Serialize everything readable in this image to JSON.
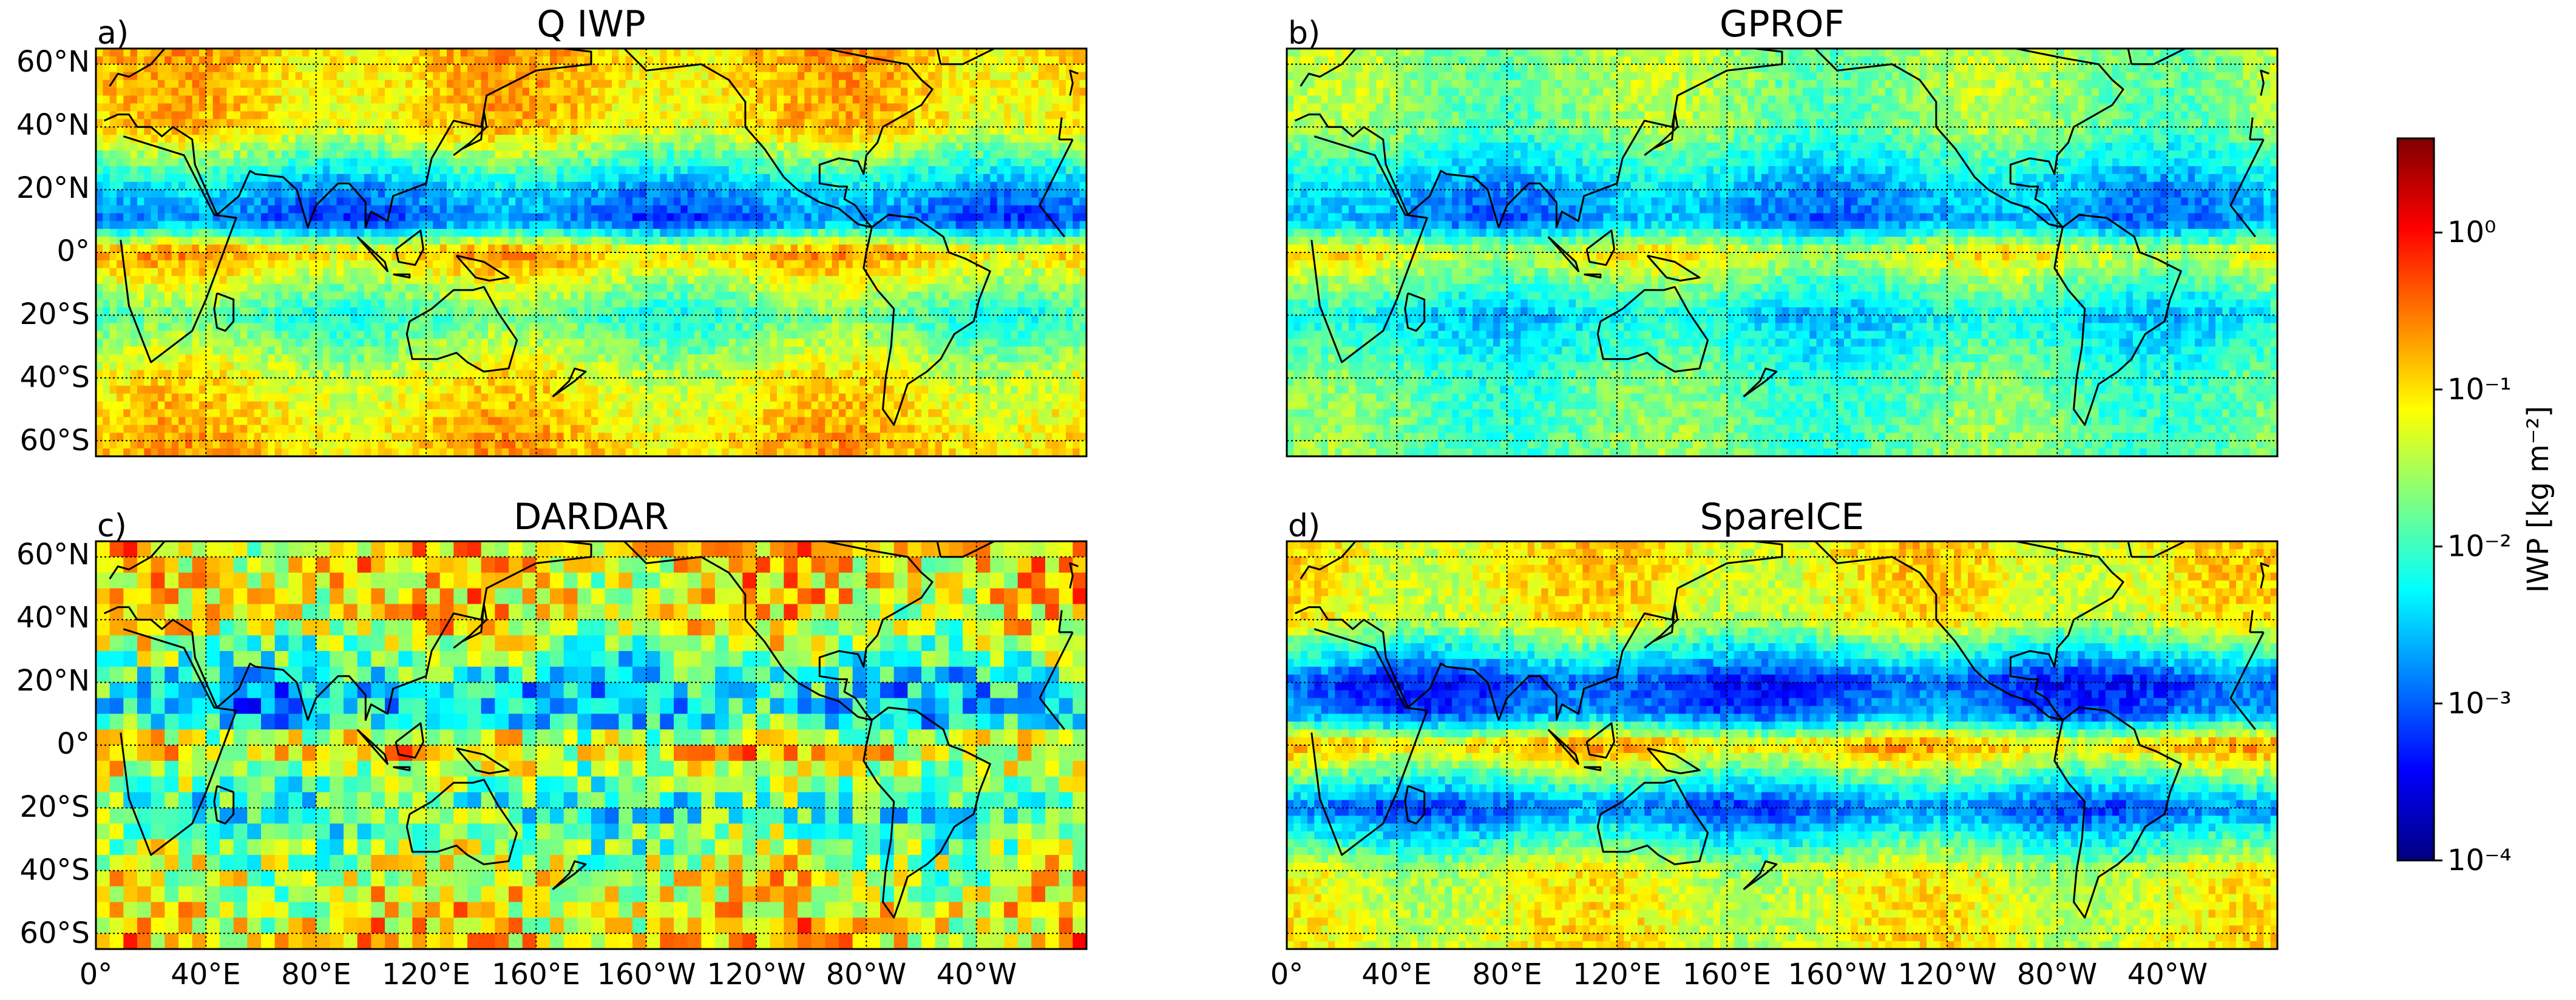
{
  "chart_data": [
    {
      "type": "heatmap",
      "panel_label": "a)",
      "title": "Q IWP",
      "x_tick_labels": [],
      "y_tick_labels": [
        "60°N",
        "40°N",
        "20°N",
        "0°",
        "20°S",
        "40°S",
        "60°S"
      ],
      "xlim": [
        0,
        360
      ],
      "ylim": [
        -65,
        65
      ],
      "lat_band_log10_iwp": [
        {
          "lat": 60,
          "value": -0.9
        },
        {
          "lat": 40,
          "value": -1.0
        },
        {
          "lat": 20,
          "value": -2.6
        },
        {
          "lat": 10,
          "value": -3.0
        },
        {
          "lat": 0,
          "value": -0.8
        },
        {
          "lat": -20,
          "value": -2.0
        },
        {
          "lat": -40,
          "value": -1.2
        },
        {
          "lat": -60,
          "value": -0.9
        }
      ],
      "resolution": "fine"
    },
    {
      "type": "heatmap",
      "panel_label": "b)",
      "title": "GPROF",
      "x_tick_labels": [],
      "y_tick_labels": [],
      "xlim": [
        0,
        360
      ],
      "ylim": [
        -65,
        65
      ],
      "lat_band_log10_iwp": [
        {
          "lat": 60,
          "value": -1.6
        },
        {
          "lat": 40,
          "value": -1.7
        },
        {
          "lat": 20,
          "value": -2.6
        },
        {
          "lat": 10,
          "value": -2.8
        },
        {
          "lat": 0,
          "value": -1.2
        },
        {
          "lat": -20,
          "value": -2.4
        },
        {
          "lat": -40,
          "value": -1.9
        },
        {
          "lat": -60,
          "value": -1.8
        }
      ],
      "resolution": "fine"
    },
    {
      "type": "heatmap",
      "panel_label": "c)",
      "title": "DARDAR",
      "x_tick_labels": [
        "0°",
        "40°E",
        "80°E",
        "120°E",
        "160°E",
        "160°W",
        "120°W",
        "80°W",
        "40°W"
      ],
      "y_tick_labels": [
        "60°N",
        "40°N",
        "20°N",
        "0°",
        "20°S",
        "40°S",
        "60°S"
      ],
      "xlim": [
        0,
        360
      ],
      "ylim": [
        -65,
        65
      ],
      "lat_band_log10_iwp": [
        {
          "lat": 60,
          "value": -1.0
        },
        {
          "lat": 40,
          "value": -1.1
        },
        {
          "lat": 20,
          "value": -2.3
        },
        {
          "lat": 10,
          "value": -2.6
        },
        {
          "lat": 0,
          "value": -0.9
        },
        {
          "lat": -20,
          "value": -2.2
        },
        {
          "lat": -40,
          "value": -1.3
        },
        {
          "lat": -60,
          "value": -1.0
        }
      ],
      "resolution": "coarse"
    },
    {
      "type": "heatmap",
      "panel_label": "d)",
      "title": "SpareICE",
      "x_tick_labels": [
        "0°",
        "40°E",
        "80°E",
        "120°E",
        "160°E",
        "160°W",
        "120°W",
        "80°W",
        "40°W"
      ],
      "y_tick_labels": [],
      "xlim": [
        0,
        360
      ],
      "ylim": [
        -65,
        65
      ],
      "lat_band_log10_iwp": [
        {
          "lat": 60,
          "value": -1.1
        },
        {
          "lat": 40,
          "value": -1.2
        },
        {
          "lat": 20,
          "value": -3.2
        },
        {
          "lat": 10,
          "value": -2.9
        },
        {
          "lat": 0,
          "value": -0.8
        },
        {
          "lat": -20,
          "value": -3.0
        },
        {
          "lat": -40,
          "value": -1.3
        },
        {
          "lat": -60,
          "value": -1.2
        }
      ],
      "resolution": "fine"
    }
  ],
  "colorbar": {
    "label": "IWP [kg m⁻²]",
    "scale": "log",
    "range_log10": [
      -4,
      0.6
    ],
    "ticks": [
      {
        "log10": 0,
        "label": "10⁰"
      },
      {
        "log10": -1,
        "label": "10⁻¹"
      },
      {
        "log10": -2,
        "label": "10⁻²"
      },
      {
        "log10": -3,
        "label": "10⁻³"
      },
      {
        "log10": -4,
        "label": "10⁻⁴"
      }
    ]
  },
  "colors": {
    "colormap": [
      "#00007f",
      "#0000ff",
      "#007fff",
      "#00ffff",
      "#7fff7f",
      "#ffff00",
      "#ff7f00",
      "#ff0000",
      "#7f0000"
    ],
    "coastline": "#000000",
    "grid": "#000000"
  }
}
